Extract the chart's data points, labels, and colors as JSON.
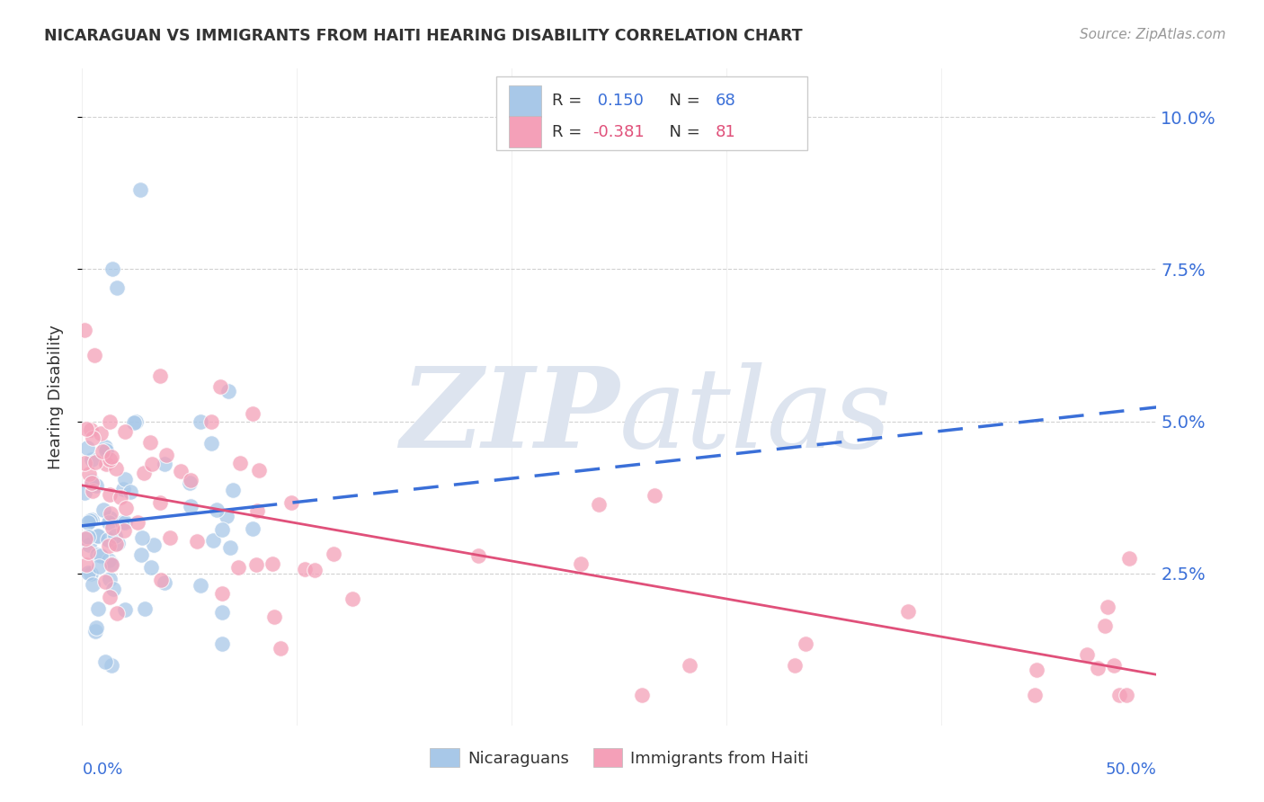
{
  "title": "NICARAGUAN VS IMMIGRANTS FROM HAITI HEARING DISABILITY CORRELATION CHART",
  "source": "Source: ZipAtlas.com",
  "ylabel": "Hearing Disability",
  "ytick_vals": [
    0.025,
    0.05,
    0.075,
    0.1
  ],
  "ytick_labels": [
    "2.5%",
    "5.0%",
    "7.5%",
    "10.0%"
  ],
  "xlim": [
    0.0,
    0.5
  ],
  "ylim": [
    0.0,
    0.108
  ],
  "legend_nicaraguans_label": "Nicaraguans",
  "legend_haiti_label": "Immigrants from Haiti",
  "r_nicaraguan": 0.15,
  "n_nicaraguan": 68,
  "r_haiti": -0.381,
  "n_haiti": 81,
  "color_nicaraguan": "#a8c8e8",
  "color_haiti": "#f4a0b8",
  "color_blue_text": "#3a6fd8",
  "color_pink_text": "#e0507a",
  "color_black_text": "#333333",
  "background_color": "#ffffff",
  "watermark_color": "#dde4ef",
  "line_blue": "#3a6fd8",
  "line_pink": "#e0507a",
  "nic_intercept": 0.03,
  "nic_slope": 0.04,
  "hai_intercept": 0.038,
  "hai_slope": -0.055
}
